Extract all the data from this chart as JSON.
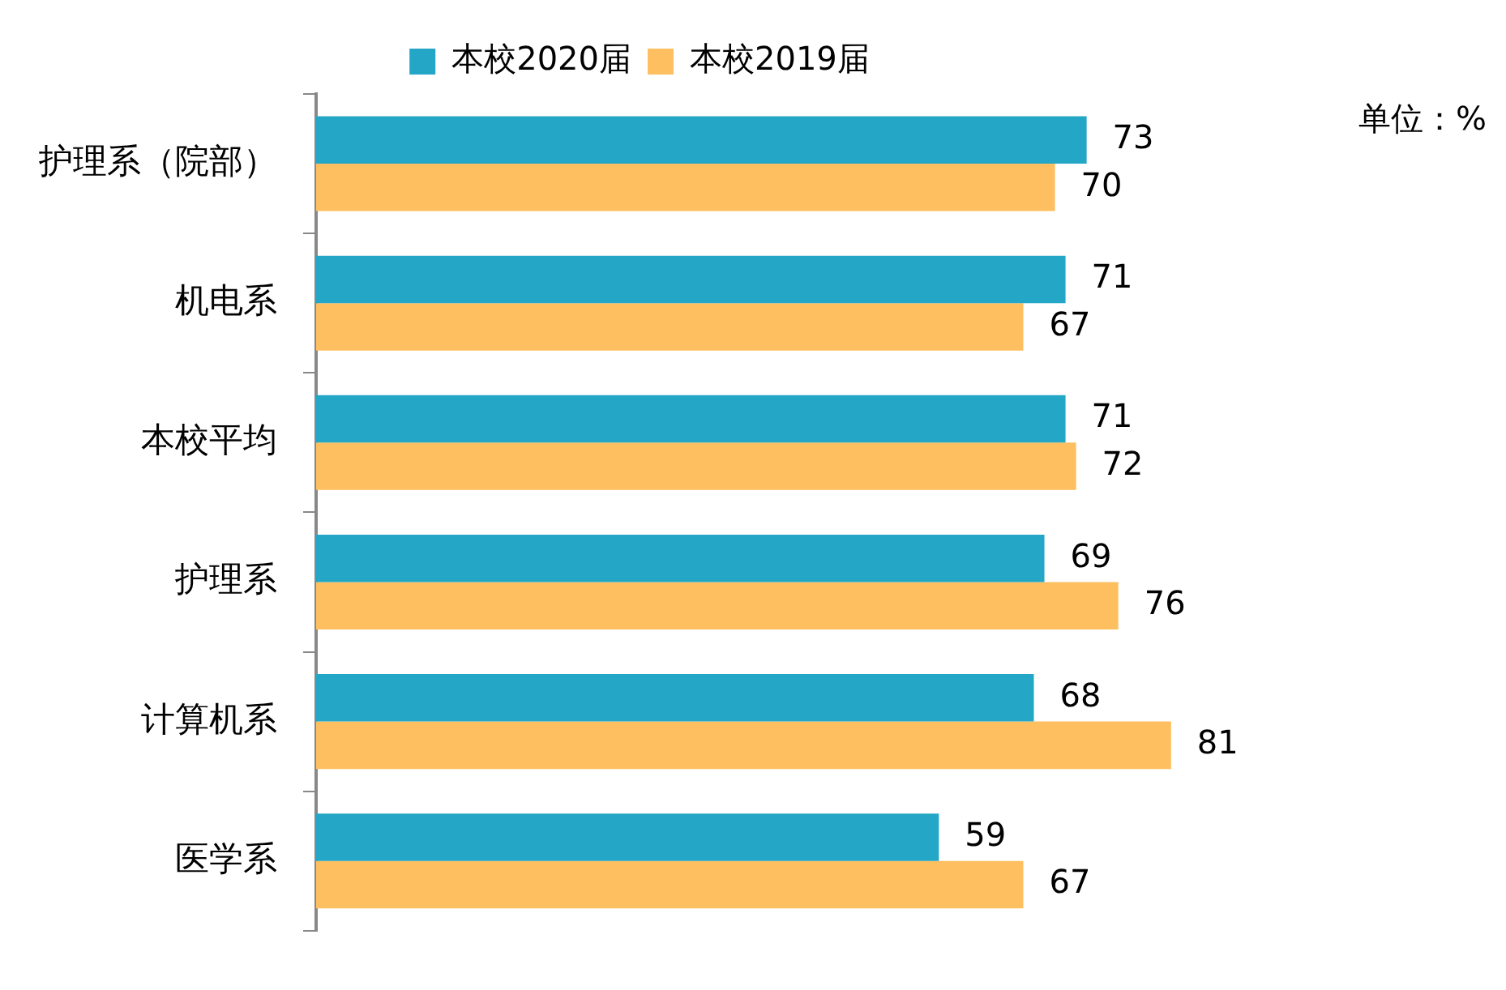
{
  "chart_data": {
    "type": "bar",
    "orientation": "horizontal",
    "categories": [
      "护理系（院部）",
      "机电系",
      "本校平均",
      "护理系",
      "计算机系",
      "医学系"
    ],
    "series": [
      {
        "name": "本校2020届",
        "color": "#24a6c6",
        "values": [
          73,
          71,
          71,
          69,
          68,
          59
        ]
      },
      {
        "name": "本校2019届",
        "color": "#fdbf5f",
        "values": [
          70,
          67,
          72,
          76,
          81,
          67
        ]
      }
    ],
    "data_labels": true,
    "legend": "top",
    "annotations": [
      "单位：%"
    ]
  }
}
